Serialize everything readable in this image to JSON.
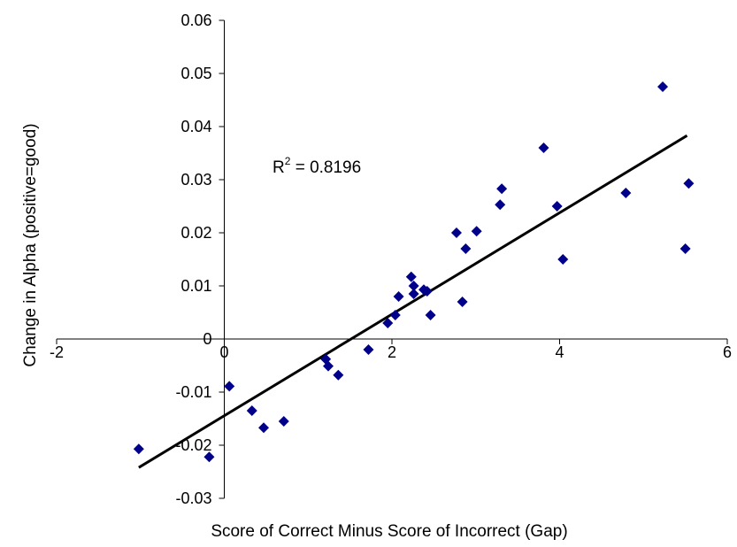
{
  "chart_data": {
    "type": "scatter",
    "title": "",
    "xlabel": "Score of Correct Minus Score of Incorrect (Gap)",
    "ylabel": "Change in Alpha (positive=good)",
    "xlim": [
      -2,
      6
    ],
    "ylim": [
      -0.03,
      0.06
    ],
    "x_ticks": [
      "-2",
      "0",
      "2",
      "4",
      "6"
    ],
    "y_ticks": [
      "-0.03",
      "-0.02",
      "-0.01",
      "0",
      "0.01",
      "0.02",
      "0.03",
      "0.04",
      "0.05",
      "0.06"
    ],
    "x_tick_values": [
      -2,
      0,
      2,
      4,
      6
    ],
    "y_tick_values": [
      -0.03,
      -0.02,
      -0.01,
      0,
      0.01,
      0.02,
      0.03,
      0.04,
      0.05,
      0.06
    ],
    "grid": false,
    "marker_color": "#00008b",
    "line_color": "#000000",
    "points": [
      {
        "x": -1.02,
        "y": -0.0207
      },
      {
        "x": -0.18,
        "y": -0.0222
      },
      {
        "x": 0.06,
        "y": -0.0089
      },
      {
        "x": 0.33,
        "y": -0.0135
      },
      {
        "x": 0.47,
        "y": -0.0167
      },
      {
        "x": 0.71,
        "y": -0.0155
      },
      {
        "x": 1.21,
        "y": -0.0038
      },
      {
        "x": 1.24,
        "y": -0.0051
      },
      {
        "x": 1.36,
        "y": -0.0068
      },
      {
        "x": 1.72,
        "y": -0.002
      },
      {
        "x": 1.95,
        "y": 0.003
      },
      {
        "x": 2.04,
        "y": 0.0045
      },
      {
        "x": 2.08,
        "y": 0.008
      },
      {
        "x": 2.23,
        "y": 0.0117
      },
      {
        "x": 2.26,
        "y": 0.01
      },
      {
        "x": 2.26,
        "y": 0.0085
      },
      {
        "x": 2.38,
        "y": 0.0093
      },
      {
        "x": 2.42,
        "y": 0.009
      },
      {
        "x": 2.46,
        "y": 0.0045
      },
      {
        "x": 2.77,
        "y": 0.02
      },
      {
        "x": 2.84,
        "y": 0.007
      },
      {
        "x": 2.88,
        "y": 0.017
      },
      {
        "x": 3.01,
        "y": 0.0203
      },
      {
        "x": 3.29,
        "y": 0.0253
      },
      {
        "x": 3.31,
        "y": 0.0283
      },
      {
        "x": 3.81,
        "y": 0.036
      },
      {
        "x": 3.97,
        "y": 0.025
      },
      {
        "x": 4.04,
        "y": 0.015
      },
      {
        "x": 4.79,
        "y": 0.0275
      },
      {
        "x": 5.23,
        "y": 0.0475
      },
      {
        "x": 5.5,
        "y": 0.017
      },
      {
        "x": 5.54,
        "y": 0.0293
      }
    ],
    "trendline": {
      "x": [
        -1.02,
        5.52
      ],
      "y": [
        -0.0242,
        0.0383
      ]
    },
    "annotation": {
      "prefix": "R",
      "superscript": "2",
      "suffix": " = 0.8196"
    }
  }
}
